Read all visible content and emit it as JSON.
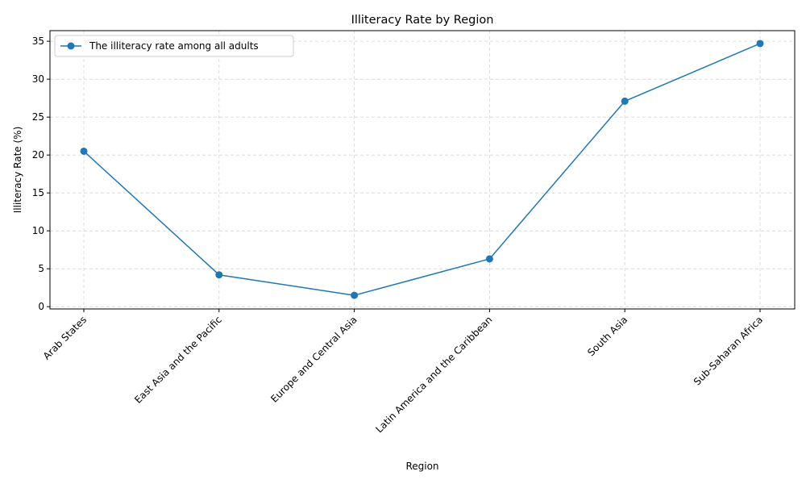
{
  "chart_data": {
    "type": "line",
    "title": "Illiteracy Rate by Region",
    "xlabel": "Region",
    "ylabel": "Illiteracy Rate (%)",
    "categories": [
      "Arab States",
      "East Asia and the Pacific",
      "Europe and Central Asia",
      "Latin America and the Caribbean",
      "South Asia",
      "Sub-Saharan Africa"
    ],
    "series": [
      {
        "name": "The illiteracy rate among all adults",
        "values": [
          20.5,
          4.2,
          1.5,
          6.3,
          27.1,
          34.7
        ],
        "color": "#1f77b4",
        "marker": "circle"
      }
    ],
    "ylim": [
      0,
      35
    ],
    "yticks": [
      0,
      5,
      10,
      15,
      20,
      25,
      30,
      35
    ],
    "grid": true,
    "legend_position": "top-left"
  }
}
